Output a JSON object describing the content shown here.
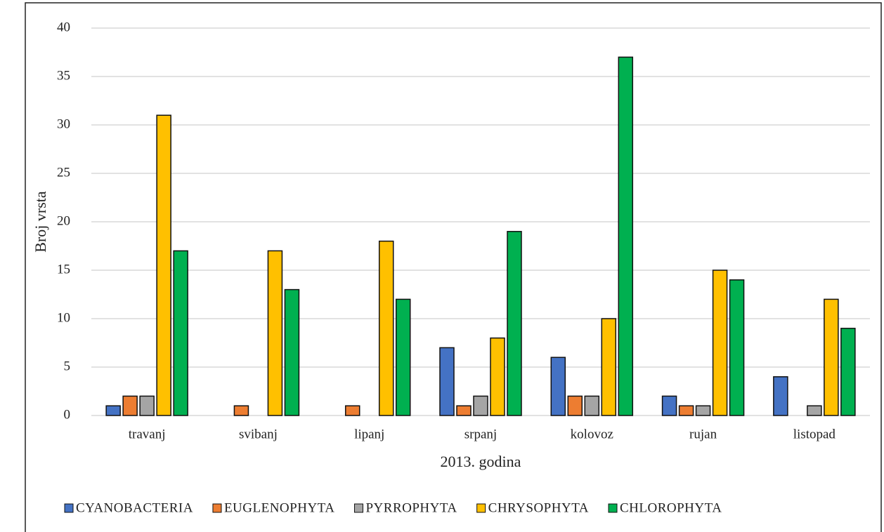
{
  "chart_data": {
    "type": "bar",
    "x_label": "2013. godina",
    "y_label": "Broj vrsta",
    "categories": [
      "travanj",
      "svibanj",
      "lipanj",
      "srpanj",
      "kolovoz",
      "rujan",
      "listopad"
    ],
    "series": [
      {
        "name": "CYANOBACTERIA",
        "color": "#4472c4",
        "values": [
          1,
          0,
          0,
          7,
          6,
          2,
          4
        ]
      },
      {
        "name": "EUGLENOPHYTA",
        "color": "#ed7d31",
        "values": [
          2,
          1,
          1,
          1,
          2,
          1,
          0
        ]
      },
      {
        "name": "PYRROPHYTA",
        "color": "#a5a5a5",
        "values": [
          2,
          0,
          0,
          2,
          2,
          1,
          1
        ]
      },
      {
        "name": "CHRYSOPHYTA",
        "color": "#ffc000",
        "values": [
          31,
          17,
          18,
          8,
          10,
          15,
          12
        ]
      },
      {
        "name": "CHLOROPHYTA",
        "color": "#00b050",
        "values": [
          17,
          13,
          12,
          19,
          37,
          14,
          9
        ]
      }
    ],
    "ylim": [
      0,
      40
    ],
    "yticks": [
      0,
      5,
      10,
      15,
      20,
      25,
      30,
      35,
      40
    ],
    "grid": true,
    "legend": "bottom"
  }
}
